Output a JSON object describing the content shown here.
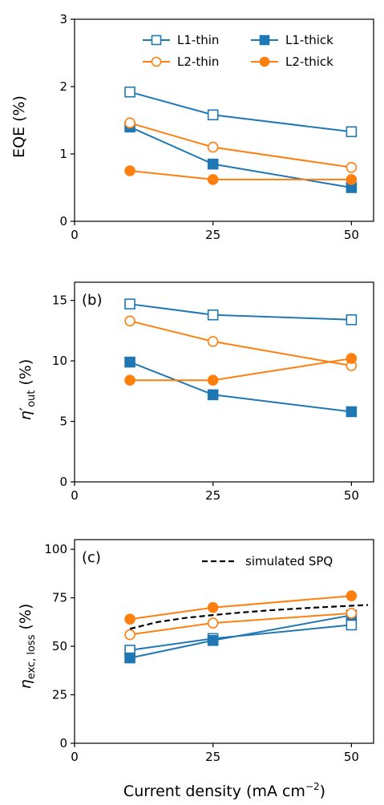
{
  "colors": {
    "blue": "#1f77b4",
    "orange": "#ff7f0e",
    "sim": "#000000"
  },
  "xlabel": "Current density (mA cm",
  "xlabel_sup": "−2",
  "xlabel_end": ")",
  "chart_data": [
    {
      "type": "line",
      "ylabel": "EQE (%)",
      "xlim": [
        0,
        54
      ],
      "ylim": [
        0,
        3
      ],
      "xticks": [
        "0",
        "25",
        "50"
      ],
      "yticks": [
        "0",
        "1",
        "2",
        "3"
      ],
      "legend": "top-right",
      "series": [
        {
          "name": "L1-thin",
          "color": "blue",
          "marker": "square-open",
          "x": [
            10,
            25,
            50
          ],
          "y": [
            1.92,
            1.58,
            1.33
          ]
        },
        {
          "name": "L1-thick",
          "color": "blue",
          "marker": "square-filled",
          "x": [
            10,
            25,
            50
          ],
          "y": [
            1.4,
            0.85,
            0.5
          ]
        },
        {
          "name": "L2-thin",
          "color": "orange",
          "marker": "circle-open",
          "x": [
            10,
            25,
            50
          ],
          "y": [
            1.46,
            1.1,
            0.8
          ]
        },
        {
          "name": "L2-thick",
          "color": "orange",
          "marker": "circle-filled",
          "x": [
            10,
            25,
            50
          ],
          "y": [
            0.75,
            0.62,
            0.62
          ]
        }
      ]
    },
    {
      "type": "line",
      "panel_label": "(b)",
      "ylabel_sym": "η",
      "ylabel_prime": "′",
      "ylabel_sub": "out",
      "ylabel_unit": "(%)",
      "xlim": [
        0,
        54
      ],
      "ylim": [
        0,
        16.5
      ],
      "xticks": [
        "0",
        "25",
        "50"
      ],
      "yticks": [
        "0",
        "5",
        "10",
        "15"
      ],
      "series": [
        {
          "color": "blue",
          "marker": "square-open",
          "x": [
            10,
            25,
            50
          ],
          "y": [
            14.7,
            13.8,
            13.4
          ]
        },
        {
          "color": "blue",
          "marker": "square-filled",
          "x": [
            10,
            25,
            50
          ],
          "y": [
            9.9,
            7.2,
            5.8
          ]
        },
        {
          "color": "orange",
          "marker": "circle-open",
          "x": [
            10,
            25,
            50
          ],
          "y": [
            13.3,
            11.6,
            9.6
          ]
        },
        {
          "color": "orange",
          "marker": "circle-filled",
          "x": [
            10,
            25,
            50
          ],
          "y": [
            8.4,
            8.4,
            10.2
          ]
        }
      ]
    },
    {
      "type": "line",
      "panel_label": "(c)",
      "ylabel_sym": "η",
      "ylabel_sub": "exc, loss",
      "ylabel_unit": "(%)",
      "xlim": [
        0,
        54
      ],
      "ylim": [
        0,
        105
      ],
      "xticks": [
        "0",
        "25",
        "50"
      ],
      "yticks": [
        "0",
        "25",
        "50",
        "75",
        "100"
      ],
      "legend": "top-right",
      "series": [
        {
          "color": "blue",
          "marker": "square-open",
          "x": [
            10,
            25,
            50
          ],
          "y": [
            48,
            54,
            61
          ]
        },
        {
          "color": "blue",
          "marker": "square-filled",
          "x": [
            10,
            25,
            50
          ],
          "y": [
            44,
            53,
            66
          ]
        },
        {
          "color": "orange",
          "marker": "circle-open",
          "x": [
            10,
            25,
            50
          ],
          "y": [
            56,
            62,
            67
          ]
        },
        {
          "color": "orange",
          "marker": "circle-filled",
          "x": [
            10,
            25,
            50
          ],
          "y": [
            64,
            70,
            76
          ]
        },
        {
          "name": "simulated SPQ",
          "color": "sim",
          "style": "dashed",
          "x": [
            10,
            15,
            20,
            25,
            30,
            35,
            40,
            45,
            50,
            53
          ],
          "y": [
            59,
            62.5,
            64.6,
            66.1,
            67.4,
            68.5,
            69.4,
            70.2,
            70.9,
            71.3
          ]
        }
      ]
    }
  ]
}
